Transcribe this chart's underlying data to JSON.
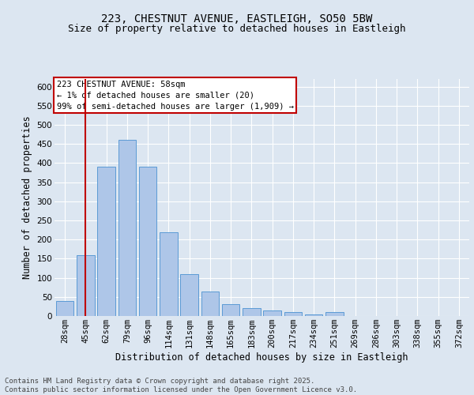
{
  "title": "223, CHESTNUT AVENUE, EASTLEIGH, SO50 5BW",
  "subtitle": "Size of property relative to detached houses in Eastleigh",
  "xlabel": "Distribution of detached houses by size in Eastleigh",
  "ylabel": "Number of detached properties",
  "categories": [
    "28sqm",
    "45sqm",
    "62sqm",
    "79sqm",
    "96sqm",
    "114sqm",
    "131sqm",
    "148sqm",
    "165sqm",
    "183sqm",
    "200sqm",
    "217sqm",
    "234sqm",
    "251sqm",
    "269sqm",
    "286sqm",
    "303sqm",
    "338sqm",
    "355sqm",
    "372sqm"
  ],
  "values": [
    40,
    160,
    390,
    460,
    390,
    220,
    110,
    65,
    30,
    20,
    15,
    10,
    5,
    10,
    0,
    0,
    0,
    0,
    0,
    0
  ],
  "bar_color": "#aec6e8",
  "bar_edge_color": "#5b9bd5",
  "background_color": "#dce6f1",
  "plot_bg_color": "#dce6f1",
  "vline_x": 1,
  "vline_color": "#c00000",
  "annotation_text": "223 CHESTNUT AVENUE: 58sqm\n← 1% of detached houses are smaller (20)\n99% of semi-detached houses are larger (1,909) →",
  "annotation_box_color": "#ffffff",
  "annotation_box_edge": "#c00000",
  "ylim": [
    0,
    620
  ],
  "yticks": [
    0,
    50,
    100,
    150,
    200,
    250,
    300,
    350,
    400,
    450,
    500,
    550,
    600
  ],
  "footer": "Contains HM Land Registry data © Crown copyright and database right 2025.\nContains public sector information licensed under the Open Government Licence v3.0.",
  "title_fontsize": 10,
  "subtitle_fontsize": 9,
  "xlabel_fontsize": 8.5,
  "ylabel_fontsize": 8.5,
  "tick_fontsize": 7.5,
  "annotation_fontsize": 7.5,
  "footer_fontsize": 6.5
}
